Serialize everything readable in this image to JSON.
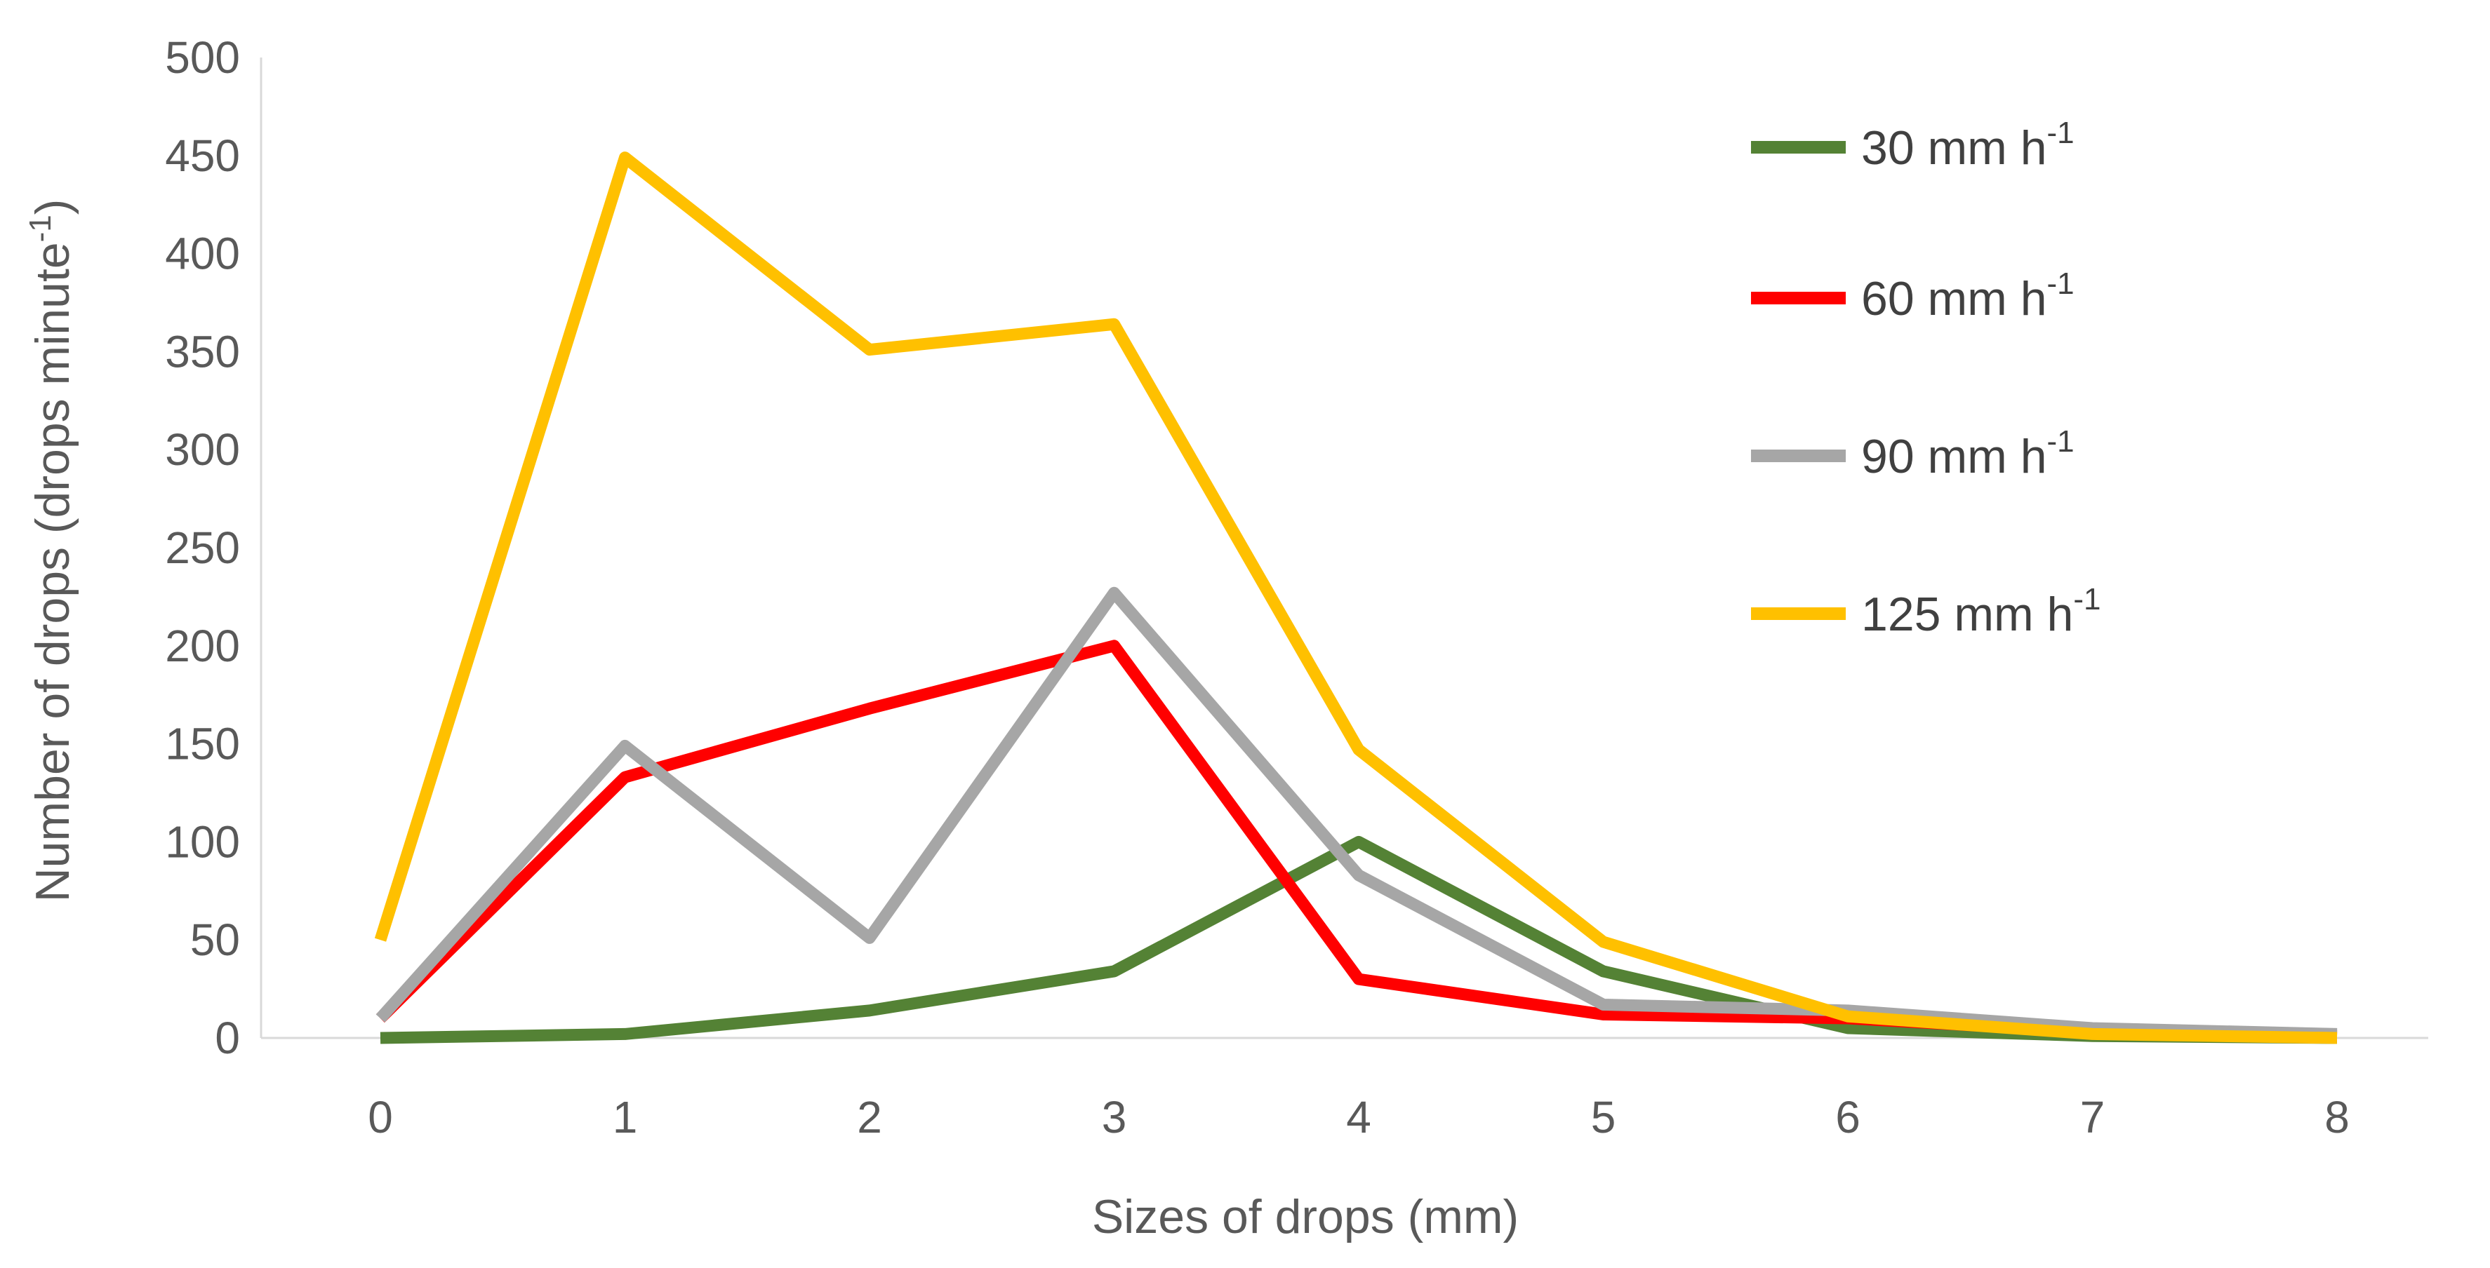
{
  "chart_data": {
    "type": "line",
    "xlabel": "Sizes of drops (mm)",
    "ylabel": "Number of drops (drops minute",
    "ylabel_sup": "-1",
    "ylabel_suffix": ")",
    "xlim": [
      0,
      8
    ],
    "ylim": [
      0,
      500
    ],
    "x": [
      0,
      1,
      2,
      3,
      4,
      5,
      6,
      7,
      8
    ],
    "x_ticks": [
      "0",
      "1",
      "2",
      "3",
      "4",
      "5",
      "6",
      "7",
      "8"
    ],
    "y_ticks": [
      "0",
      "50",
      "100",
      "150",
      "200",
      "250",
      "300",
      "350",
      "400",
      "450",
      "500"
    ],
    "grid": false,
    "legend_position": "top-right",
    "series": [
      {
        "name": "30 mm h",
        "sup": "-1",
        "color": "#548235",
        "values": [
          0,
          2,
          14,
          34,
          100,
          34,
          5,
          1,
          0
        ]
      },
      {
        "name": "60 mm h",
        "sup": "-1",
        "color": "#FF0000",
        "values": [
          10,
          133,
          168,
          200,
          30,
          12,
          10,
          3,
          1
        ]
      },
      {
        "name": "90 mm h",
        "sup": "-1",
        "color": "#A6A6A6",
        "values": [
          10,
          149,
          51,
          227,
          83,
          17,
          14,
          5,
          2
        ]
      },
      {
        "name": "125 mm h",
        "sup": "-1",
        "color": "#FFC000",
        "values": [
          50,
          449,
          351,
          364,
          147,
          49,
          11,
          2,
          0
        ]
      }
    ]
  }
}
